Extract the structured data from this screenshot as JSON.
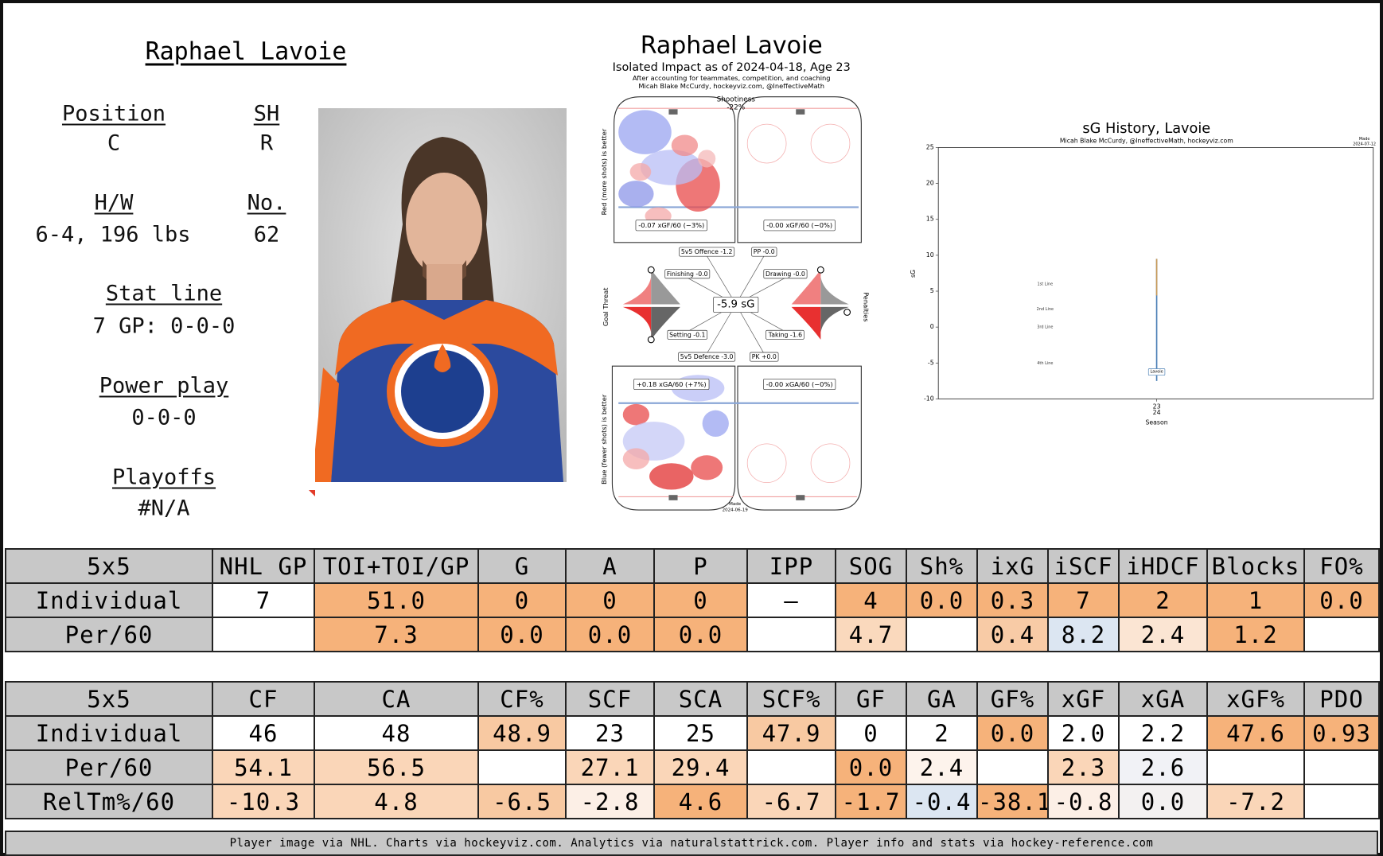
{
  "header": {
    "name": "Raphael Lavoie"
  },
  "info": {
    "position_label": "Position",
    "position": "C",
    "sh_label": "SH",
    "sh": "R",
    "hw_label": "H/W",
    "hw": "6-4, 196 lbs",
    "no_label": "No.",
    "no": "62",
    "stat_label": "Stat line",
    "stat": "7 GP: 0-0-0",
    "pp_label": "Power play",
    "pp": "0-0-0",
    "playoffs_label": "Playoffs",
    "playoffs": "#N/A"
  },
  "impact": {
    "title": "Raphael Lavoie",
    "subtitle": "Isolated Impact as of 2024-04-18, Age 23",
    "note1": "After accounting for teammates, competition, and coaching",
    "note2": "Micah Blake McCurdy, hockeyviz.com, @IneffectiveMath",
    "shootiness_label": "Shootiness",
    "shootiness": "-22%",
    "off_ev": "-0.07 xGF/60 (−3%)",
    "off_pp": "-0.00 xGF/60 (−0%)",
    "def_ev": "+0.18 xGA/60 (+7%)",
    "def_pk": "-0.00 xGA/60 (−0%)",
    "offence": "5v5 Offence -1.2",
    "pp": "PP -0.0",
    "finishing": "Finishing -0.0",
    "drawing": "Drawing -0.0",
    "total": "-5.9 sG",
    "setting": "Setting -0.1",
    "taking": "Taking -1.6",
    "defence": "5v5 Defence -3.0",
    "pk": "PK +0.0",
    "red_note": "Red (more shots) is better",
    "blue_note": "Blue (fewer shots) is better",
    "goal_threat": "Goal Threat",
    "penalties": "Penalties",
    "made": "Made",
    "made_date": "2024-06-19"
  },
  "sg_history": {
    "type": "line",
    "title": "sG History, Lavoie",
    "subtitle": "Micah Blake McCurdy, @IneffectiveMath, hockeyviz.com",
    "made": "Made",
    "made_date": "2024-07-12",
    "y_label": "sG",
    "x_label": "Season",
    "season_top": "23",
    "season_bottom": "24",
    "ylim": [
      -10,
      25
    ],
    "yticks": [
      -10,
      -5,
      0,
      5,
      10,
      15,
      20,
      25
    ],
    "line_labels": [
      "1st Line",
      "2nd Line",
      "3rd Line",
      "4th Line"
    ],
    "line_values": [
      6,
      2.5,
      0,
      -5
    ],
    "player_label": "Lavoie",
    "value": -6.2,
    "interval": [
      -7.5,
      9.5
    ],
    "color": "#4a7fb5"
  },
  "table1": {
    "header": [
      "5x5",
      "NHL GP",
      "TOI+TOI/GP",
      "G",
      "A",
      "P",
      "IPP",
      "SOG",
      "Sh%",
      "ixG",
      "iSCF",
      "iHDCF",
      "Blocks",
      "FO%"
    ],
    "rows": [
      [
        "Individual",
        "7",
        "51.0",
        "0",
        "0",
        "0",
        "–",
        "4",
        "0.0",
        "0.3",
        "7",
        "2",
        "1",
        "0.0"
      ],
      [
        "Per/60",
        null,
        "7.3",
        "0.0",
        "0.0",
        "0.0",
        null,
        "4.7",
        null,
        "0.4",
        "8.2",
        "2.4",
        "1.2",
        null
      ]
    ],
    "colors": [
      [
        "#c8c8c8",
        "#ffffff",
        "#f6b27a",
        "#f6b27a",
        "#f6b27a",
        "#f6b27a",
        "#ffffff",
        "#f6b27a",
        "#f6b27a",
        "#f6b27a",
        "#f6b27a",
        "#f6b27a",
        "#f6b27a",
        "#f6b27a"
      ],
      [
        "#c8c8c8",
        "#ffffff",
        "#f6b27a",
        "#f6b27a",
        "#f6b27a",
        "#f6b27a",
        "#ffffff",
        "#fad9bd",
        "#ffffff",
        "#f8cba6",
        "#dce6f2",
        "#fbe5d3",
        "#f6b27a",
        "#ffffff"
      ]
    ]
  },
  "table2": {
    "header": [
      "5x5",
      "CF",
      "CA",
      "CF%",
      "SCF",
      "SCA",
      "SCF%",
      "GF",
      "GA",
      "GF%",
      "xGF",
      "xGA",
      "xGF%",
      "PDO"
    ],
    "rows": [
      [
        "Individual",
        "46",
        "48",
        "48.9",
        "23",
        "25",
        "47.9",
        "0",
        "2",
        "0.0",
        "2.0",
        "2.2",
        "47.6",
        "0.93"
      ],
      [
        "Per/60",
        "54.1",
        "56.5",
        null,
        "27.1",
        "29.4",
        null,
        "0.0",
        "2.4",
        null,
        "2.3",
        "2.6",
        null,
        null
      ],
      [
        "RelTm%/60",
        "-10.3",
        "4.8",
        "-6.5",
        "-2.8",
        "4.6",
        "-6.7",
        "-1.7",
        "-0.4",
        "-38.1",
        "-0.8",
        "0.0",
        "-7.2",
        null
      ]
    ],
    "colors": [
      [
        "#c8c8c8",
        "#ffffff",
        "#ffffff",
        "#f8c9a2",
        "#ffffff",
        "#ffffff",
        "#f8c9a2",
        "#ffffff",
        "#ffffff",
        "#f6b27a",
        "#ffffff",
        "#ffffff",
        "#f6b27a",
        "#f6b27a"
      ],
      [
        "#c8c8c8",
        "#fad6b8",
        "#fad6b8",
        "#ffffff",
        "#fad6b8",
        "#fad6b8",
        "#ffffff",
        "#f6b27a",
        "#fdf3ec",
        "#ffffff",
        "#fad6b8",
        "#f1f2f6",
        "#ffffff",
        "#ffffff"
      ],
      [
        "#c8c8c8",
        "#fad6b8",
        "#fad6b8",
        "#f8c9a2",
        "#fcefe6",
        "#f6b27a",
        "#fad6b8",
        "#f6b27a",
        "#dce6f2",
        "#f6b27a",
        "#fcefe6",
        "#f3f1f1",
        "#fad6b8",
        "#ffffff"
      ]
    ]
  },
  "footer": "Player image via NHL. Charts via hockeyviz.com. Analytics via naturalstattrick.com. Player info and stats via hockey-reference.com"
}
